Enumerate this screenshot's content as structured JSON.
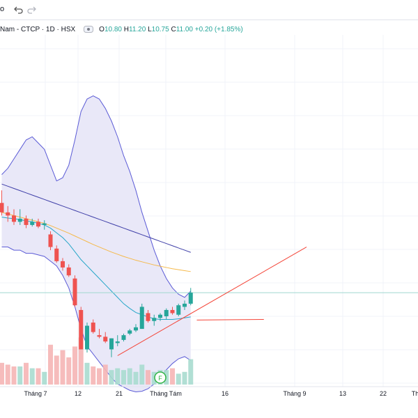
{
  "toolbar": {
    "partial_text": "o"
  },
  "legend": {
    "symbol_text": "Nam - CTCP · 1D · HSX",
    "open_label": "O",
    "open": "10.80",
    "high_label": "H",
    "high": "11.20",
    "low_label": "L",
    "low": "10.75",
    "close_label": "C",
    "close": "11.00",
    "change": "+0.20 (+1.85%)"
  },
  "colors": {
    "up": "#26a69a",
    "down": "#ef5350",
    "band_fill": "#e9e8f8",
    "band_line": "#5b5bd6",
    "ma_long": "#3f3fa8",
    "ma_mid": "#f5b94a",
    "ma_short": "#26a6c8",
    "trend": "#f44336",
    "level": "#9fd8cf"
  },
  "icons": {
    "undo": "undo-icon",
    "redo": "redo-icon",
    "eye": "eye-icon",
    "event": "financial-event-icon"
  },
  "event_marker": "F",
  "chart_data": {
    "type": "candlestick",
    "x_ticks": [
      "Tháng 7",
      "12",
      "21",
      "Tháng Tám",
      "16",
      "Tháng 9",
      "13",
      "22",
      "Th"
    ],
    "candles": [
      {
        "o": 12.6,
        "h": 13.0,
        "l": 12.2,
        "c": 12.3,
        "v": 1.2
      },
      {
        "o": 12.3,
        "h": 12.5,
        "l": 12.0,
        "c": 12.2,
        "v": 1.1
      },
      {
        "o": 12.2,
        "h": 12.4,
        "l": 11.9,
        "c": 12.0,
        "v": 1.0
      },
      {
        "o": 12.0,
        "h": 12.4,
        "l": 11.9,
        "c": 12.1,
        "v": 1.0
      },
      {
        "o": 12.1,
        "h": 12.2,
        "l": 11.8,
        "c": 11.9,
        "v": 1.2
      },
      {
        "o": 11.9,
        "h": 12.1,
        "l": 11.85,
        "c": 12.0,
        "v": 0.9
      },
      {
        "o": 12.0,
        "h": 12.1,
        "l": 11.8,
        "c": 11.85,
        "v": 0.9
      },
      {
        "o": 11.9,
        "h": 12.05,
        "l": 11.75,
        "c": 11.95,
        "v": 0.7
      },
      {
        "o": 11.6,
        "h": 11.7,
        "l": 11.1,
        "c": 11.2,
        "v": 2.2
      },
      {
        "o": 11.15,
        "h": 11.25,
        "l": 10.7,
        "c": 10.75,
        "v": 1.6
      },
      {
        "o": 10.75,
        "h": 10.85,
        "l": 10.45,
        "c": 10.55,
        "v": 1.9
      },
      {
        "o": 10.55,
        "h": 10.65,
        "l": 10.25,
        "c": 10.3,
        "v": 1.5
      },
      {
        "o": 10.2,
        "h": 10.3,
        "l": 9.3,
        "c": 9.35,
        "v": 2.1
      },
      {
        "o": 9.2,
        "h": 9.3,
        "l": 7.95,
        "c": 7.95,
        "v": 2.6
      },
      {
        "o": 7.95,
        "h": 8.8,
        "l": 7.85,
        "c": 8.7,
        "v": 1.2
      },
      {
        "o": 8.8,
        "h": 8.9,
        "l": 8.45,
        "c": 8.5,
        "v": 1.0
      },
      {
        "o": 8.4,
        "h": 8.6,
        "l": 8.3,
        "c": 8.35,
        "v": 0.9
      },
      {
        "o": 8.35,
        "h": 8.5,
        "l": 8.15,
        "c": 8.2,
        "v": 1.1
      },
      {
        "o": 7.95,
        "h": 8.3,
        "l": 7.7,
        "c": 8.3,
        "v": 0.8
      },
      {
        "o": 8.15,
        "h": 8.4,
        "l": 8.05,
        "c": 8.2,
        "v": 0.9
      },
      {
        "o": 8.25,
        "h": 8.45,
        "l": 8.2,
        "c": 8.4,
        "v": 0.8
      },
      {
        "o": 8.45,
        "h": 8.6,
        "l": 8.4,
        "c": 8.55,
        "v": 0.9
      },
      {
        "o": 8.55,
        "h": 8.75,
        "l": 8.5,
        "c": 8.65,
        "v": 0.7
      },
      {
        "o": 8.6,
        "h": 9.4,
        "l": 8.6,
        "c": 9.3,
        "v": 1.1
      },
      {
        "o": 9.1,
        "h": 9.2,
        "l": 8.8,
        "c": 8.85,
        "v": 0.8
      },
      {
        "o": 8.85,
        "h": 9.05,
        "l": 8.7,
        "c": 8.95,
        "v": 0.7
      },
      {
        "o": 8.95,
        "h": 9.1,
        "l": 8.85,
        "c": 9.05,
        "v": 0.8
      },
      {
        "o": 9.0,
        "h": 9.25,
        "l": 8.9,
        "c": 9.2,
        "v": 0.8
      },
      {
        "o": 9.2,
        "h": 9.3,
        "l": 9.05,
        "c": 9.1,
        "v": 0.9
      },
      {
        "o": 9.05,
        "h": 9.4,
        "l": 9.0,
        "c": 9.35,
        "v": 0.6
      },
      {
        "o": 9.3,
        "h": 9.5,
        "l": 9.2,
        "c": 9.4,
        "v": 0.7
      },
      {
        "o": 9.4,
        "h": 9.9,
        "l": 9.35,
        "c": 9.75,
        "v": 1.4
      }
    ],
    "bollinger": {
      "upper": [
        13.5,
        13.7,
        14.0,
        14.3,
        14.6,
        14.7,
        14.5,
        14.3,
        13.8,
        13.3,
        13.4,
        13.8,
        14.6,
        15.5,
        15.9,
        16.0,
        15.9,
        15.6,
        15.2,
        14.7,
        14.1,
        13.6,
        13.0,
        12.3,
        11.7,
        11.1,
        10.6,
        10.2,
        9.9,
        9.7,
        9.6,
        9.8
      ],
      "lower": [
        11.2,
        11.2,
        11.1,
        11.1,
        11.0,
        11.0,
        10.95,
        10.9,
        10.75,
        10.6,
        10.3,
        9.9,
        9.3,
        8.6,
        8.05,
        7.8,
        7.55,
        7.3,
        7.05,
        6.85,
        6.75,
        6.65,
        6.6,
        6.62,
        6.7,
        6.85,
        7.05,
        7.3,
        7.5,
        7.65,
        7.72,
        7.6
      ]
    },
    "ma_long": [
      13.2,
      13.13,
      13.06,
      12.99,
      12.92,
      12.85,
      12.78,
      12.71,
      12.64,
      12.57,
      12.5,
      12.43,
      12.36,
      12.29,
      12.22,
      12.15,
      12.08,
      12.01,
      11.94,
      11.87,
      11.8,
      11.73,
      11.66,
      11.59,
      11.52,
      11.45,
      11.38,
      11.31,
      11.24,
      11.17,
      11.1,
      11.03
    ],
    "ma_mid": [
      12.3,
      12.25,
      12.2,
      12.15,
      12.1,
      12.05,
      12.0,
      11.95,
      11.88,
      11.8,
      11.72,
      11.64,
      11.55,
      11.46,
      11.37,
      11.28,
      11.2,
      11.12,
      11.04,
      10.97,
      10.9,
      10.84,
      10.78,
      10.73,
      10.68,
      10.63,
      10.59,
      10.55,
      10.51,
      10.48,
      10.45,
      10.42
    ],
    "ma_short": [
      12.15,
      12.12,
      12.1,
      12.07,
      12.03,
      12.0,
      11.95,
      11.9,
      11.8,
      11.65,
      11.5,
      11.3,
      11.05,
      10.8,
      10.6,
      10.4,
      10.2,
      10.0,
      9.8,
      9.6,
      9.4,
      9.25,
      9.12,
      9.05,
      8.98,
      8.92,
      8.9,
      8.9,
      8.9,
      8.92,
      8.95,
      8.98
    ],
    "horizontal_line": 9.75,
    "trend_lines": [
      {
        "from": {
          "i": 19,
          "v": 7.75
        },
        "to": {
          "i": 50,
          "v": 11.2
        }
      },
      {
        "from": {
          "i": 32,
          "v": 8.88
        },
        "to": {
          "i": 43,
          "v": 8.9
        }
      }
    ]
  }
}
